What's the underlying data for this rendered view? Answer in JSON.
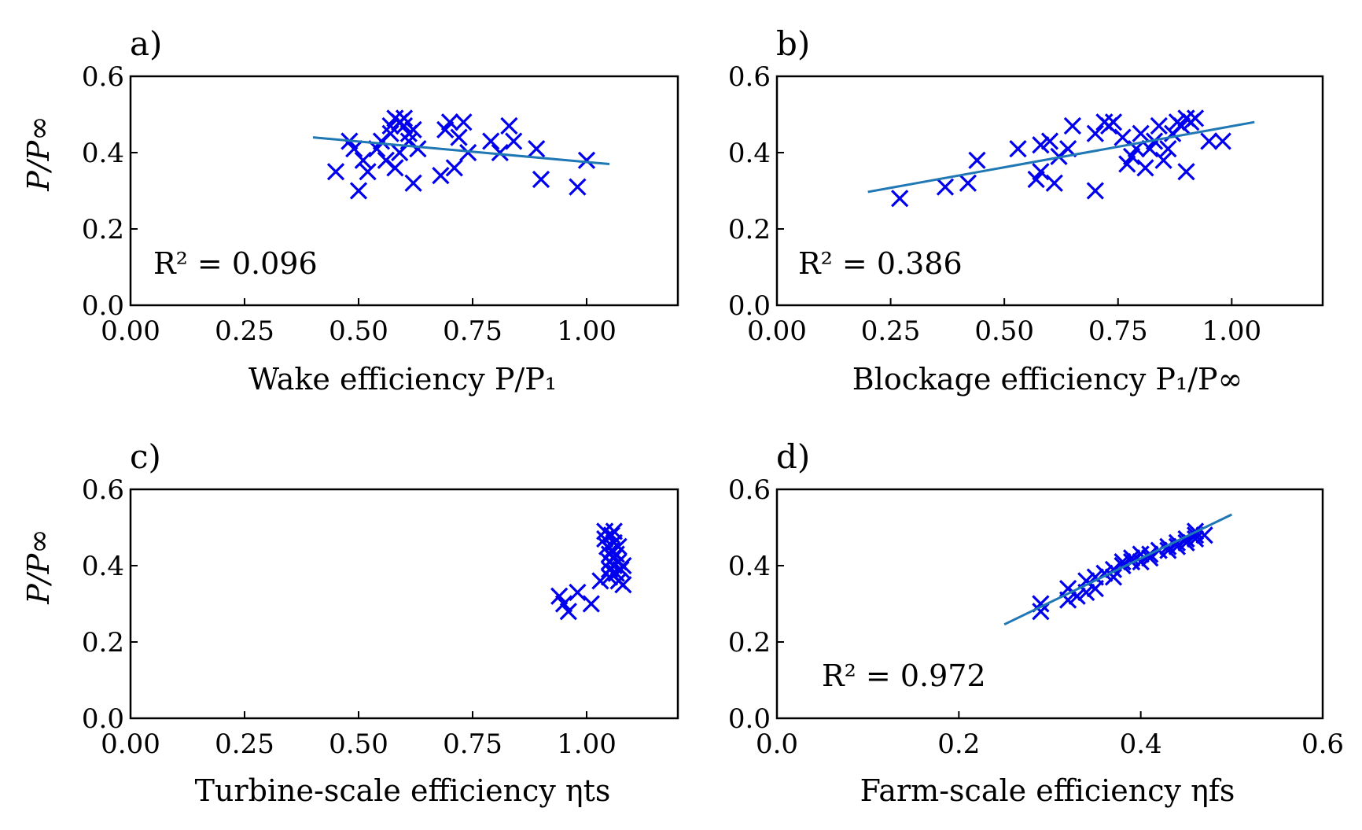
{
  "figure": {
    "panels": [
      {
        "panel_label": "a)",
        "xlabel": "Wake efficiency P/P₁",
        "ylabel": "P/P∞",
        "r2_label": "R² = 0.096"
      },
      {
        "panel_label": "b)",
        "xlabel": "Blockage efficiency P₁/P∞",
        "ylabel": "",
        "r2_label": "R² = 0.386"
      },
      {
        "panel_label": "c)",
        "xlabel": "Turbine-scale efficiency ηts",
        "ylabel": "P/P∞",
        "r2_label": ""
      },
      {
        "panel_label": "d)",
        "xlabel": "Farm-scale efficiency ηfs",
        "ylabel": "",
        "r2_label": "R² = 0.972"
      }
    ]
  },
  "chart_data": [
    {
      "type": "scatter",
      "xlim": [
        0,
        1.2
      ],
      "ylim": [
        0,
        0.6
      ],
      "xticks": [
        0.0,
        0.25,
        0.5,
        0.75,
        1.0
      ],
      "xtick_labels": [
        "0.00",
        "0.25",
        "0.50",
        "0.75",
        "1.00"
      ],
      "yticks": [
        0.0,
        0.2,
        0.4,
        0.6
      ],
      "ytick_labels": [
        "0.0",
        "0.2",
        "0.4",
        "0.6"
      ],
      "marker": "x",
      "marker_color": "#0000ee",
      "fit_color": "#1f77b4",
      "points": [
        [
          0.45,
          0.35
        ],
        [
          0.48,
          0.43
        ],
        [
          0.49,
          0.41
        ],
        [
          0.5,
          0.3
        ],
        [
          0.51,
          0.38
        ],
        [
          0.52,
          0.35
        ],
        [
          0.54,
          0.41
        ],
        [
          0.55,
          0.43
        ],
        [
          0.56,
          0.38
        ],
        [
          0.57,
          0.47
        ],
        [
          0.57,
          0.45
        ],
        [
          0.58,
          0.49
        ],
        [
          0.58,
          0.36
        ],
        [
          0.59,
          0.48
        ],
        [
          0.59,
          0.4
        ],
        [
          0.6,
          0.49
        ],
        [
          0.6,
          0.47
        ],
        [
          0.61,
          0.45
        ],
        [
          0.61,
          0.43
        ],
        [
          0.62,
          0.32
        ],
        [
          0.62,
          0.46
        ],
        [
          0.63,
          0.41
        ],
        [
          0.68,
          0.34
        ],
        [
          0.69,
          0.46
        ],
        [
          0.7,
          0.48
        ],
        [
          0.71,
          0.36
        ],
        [
          0.72,
          0.44
        ],
        [
          0.73,
          0.48
        ],
        [
          0.74,
          0.4
        ],
        [
          0.79,
          0.43
        ],
        [
          0.81,
          0.4
        ],
        [
          0.83,
          0.47
        ],
        [
          0.84,
          0.43
        ],
        [
          0.89,
          0.41
        ],
        [
          0.9,
          0.33
        ],
        [
          0.98,
          0.31
        ],
        [
          1.0,
          0.38
        ]
      ],
      "fit_line": [
        [
          0.4,
          0.44
        ],
        [
          1.05,
          0.37
        ]
      ]
    },
    {
      "type": "scatter",
      "xlim": [
        0,
        1.2
      ],
      "ylim": [
        0,
        0.6
      ],
      "xticks": [
        0.0,
        0.25,
        0.5,
        0.75,
        1.0
      ],
      "xtick_labels": [
        "0.00",
        "0.25",
        "0.50",
        "0.75",
        "1.00"
      ],
      "yticks": [
        0.0,
        0.2,
        0.4,
        0.6
      ],
      "ytick_labels": [
        "0.0",
        "0.2",
        "0.4",
        "0.6"
      ],
      "marker": "x",
      "marker_color": "#0000ee",
      "fit_color": "#1f77b4",
      "points": [
        [
          0.27,
          0.28
        ],
        [
          0.37,
          0.31
        ],
        [
          0.42,
          0.32
        ],
        [
          0.44,
          0.38
        ],
        [
          0.53,
          0.41
        ],
        [
          0.57,
          0.33
        ],
        [
          0.58,
          0.35
        ],
        [
          0.58,
          0.42
        ],
        [
          0.6,
          0.43
        ],
        [
          0.61,
          0.32
        ],
        [
          0.62,
          0.39
        ],
        [
          0.64,
          0.41
        ],
        [
          0.65,
          0.47
        ],
        [
          0.7,
          0.3
        ],
        [
          0.7,
          0.45
        ],
        [
          0.72,
          0.48
        ],
        [
          0.73,
          0.47
        ],
        [
          0.74,
          0.48
        ],
        [
          0.76,
          0.44
        ],
        [
          0.77,
          0.37
        ],
        [
          0.78,
          0.39
        ],
        [
          0.79,
          0.41
        ],
        [
          0.8,
          0.45
        ],
        [
          0.81,
          0.36
        ],
        [
          0.82,
          0.41
        ],
        [
          0.83,
          0.43
        ],
        [
          0.84,
          0.47
        ],
        [
          0.85,
          0.38
        ],
        [
          0.86,
          0.41
        ],
        [
          0.87,
          0.45
        ],
        [
          0.88,
          0.48
        ],
        [
          0.89,
          0.47
        ],
        [
          0.9,
          0.49
        ],
        [
          0.9,
          0.35
        ],
        [
          0.91,
          0.48
        ],
        [
          0.92,
          0.49
        ],
        [
          0.95,
          0.43
        ],
        [
          0.98,
          0.43
        ]
      ],
      "fit_line": [
        [
          0.2,
          0.297
        ],
        [
          1.05,
          0.48
        ]
      ]
    },
    {
      "type": "scatter",
      "xlim": [
        0,
        1.2
      ],
      "ylim": [
        0,
        0.6
      ],
      "xticks": [
        0.0,
        0.25,
        0.5,
        0.75,
        1.0
      ],
      "xtick_labels": [
        "0.00",
        "0.25",
        "0.50",
        "0.75",
        "1.00"
      ],
      "yticks": [
        0.0,
        0.2,
        0.4,
        0.6
      ],
      "ytick_labels": [
        "0.0",
        "0.2",
        "0.4",
        "0.6"
      ],
      "marker": "x",
      "marker_color": "#0000ee",
      "fit_color": "#1f77b4",
      "points": [
        [
          0.94,
          0.32
        ],
        [
          0.95,
          0.3
        ],
        [
          0.96,
          0.28
        ],
        [
          0.98,
          0.33
        ],
        [
          1.01,
          0.3
        ],
        [
          1.03,
          0.36
        ],
        [
          1.04,
          0.49
        ],
        [
          1.04,
          0.47
        ],
        [
          1.045,
          0.45
        ],
        [
          1.05,
          0.43
        ],
        [
          1.05,
          0.41
        ],
        [
          1.05,
          0.39
        ],
        [
          1.05,
          0.37
        ],
        [
          1.055,
          0.48
        ],
        [
          1.055,
          0.44
        ],
        [
          1.06,
          0.46
        ],
        [
          1.06,
          0.42
        ],
        [
          1.06,
          0.4
        ],
        [
          1.06,
          0.49
        ],
        [
          1.065,
          0.38
        ],
        [
          1.065,
          0.43
        ],
        [
          1.07,
          0.45
        ],
        [
          1.07,
          0.41
        ],
        [
          1.07,
          0.36
        ],
        [
          1.075,
          0.39
        ],
        [
          1.08,
          0.35
        ],
        [
          1.08,
          0.4
        ]
      ],
      "fit_line": []
    },
    {
      "type": "scatter",
      "xlim": [
        0,
        0.6
      ],
      "ylim": [
        0,
        0.6
      ],
      "xticks": [
        0.0,
        0.2,
        0.4,
        0.6
      ],
      "xtick_labels": [
        "0.0",
        "0.2",
        "0.4",
        "0.6"
      ],
      "yticks": [
        0.0,
        0.2,
        0.4,
        0.6
      ],
      "ytick_labels": [
        "0.0",
        "0.2",
        "0.4",
        "0.6"
      ],
      "marker": "x",
      "marker_color": "#0000ee",
      "fit_color": "#1f77b4",
      "points": [
        [
          0.29,
          0.28
        ],
        [
          0.29,
          0.3
        ],
        [
          0.32,
          0.31
        ],
        [
          0.32,
          0.34
        ],
        [
          0.33,
          0.32
        ],
        [
          0.34,
          0.33
        ],
        [
          0.34,
          0.36
        ],
        [
          0.35,
          0.34
        ],
        [
          0.35,
          0.37
        ],
        [
          0.36,
          0.38
        ],
        [
          0.37,
          0.39
        ],
        [
          0.37,
          0.37
        ],
        [
          0.38,
          0.4
        ],
        [
          0.38,
          0.41
        ],
        [
          0.39,
          0.41
        ],
        [
          0.39,
          0.42
        ],
        [
          0.4,
          0.43
        ],
        [
          0.4,
          0.41
        ],
        [
          0.41,
          0.42
        ],
        [
          0.41,
          0.43
        ],
        [
          0.42,
          0.44
        ],
        [
          0.43,
          0.44
        ],
        [
          0.43,
          0.45
        ],
        [
          0.44,
          0.46
        ],
        [
          0.44,
          0.45
        ],
        [
          0.45,
          0.47
        ],
        [
          0.45,
          0.46
        ],
        [
          0.46,
          0.48
        ],
        [
          0.46,
          0.47
        ],
        [
          0.46,
          0.49
        ],
        [
          0.47,
          0.48
        ]
      ],
      "fit_line": [
        [
          0.25,
          0.246
        ],
        [
          0.5,
          0.534
        ]
      ]
    }
  ]
}
